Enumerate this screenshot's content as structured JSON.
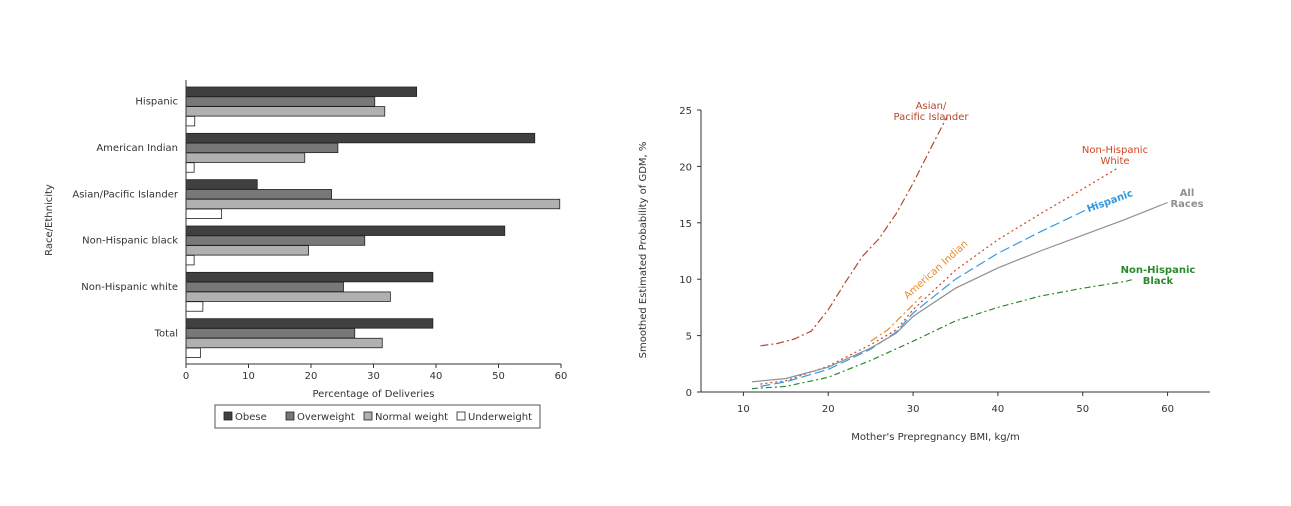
{
  "chart_data": [
    {
      "type": "bar",
      "orientation": "horizontal",
      "ylabel": "Race/Ethnicity",
      "xlabel": "Percentage of Deliveries",
      "xlim": [
        0,
        60
      ],
      "xticks": [
        "0",
        "10",
        "20",
        "30",
        "40",
        "50",
        "60"
      ],
      "categories": [
        "Hispanic",
        "American Indian",
        "Asian/Pacific Islander",
        "Non-Hispanic black",
        "Non-Hispanic white",
        "Total"
      ],
      "series": [
        {
          "name": "Obese",
          "color": "#404040",
          "values": [
            36.9,
            55.8,
            11.4,
            51.0,
            39.5,
            39.5
          ]
        },
        {
          "name": "Overweight",
          "color": "#787878",
          "values": [
            30.2,
            24.3,
            23.3,
            28.6,
            25.2,
            27.0
          ]
        },
        {
          "name": "Normal weight",
          "color": "#b0b0b0",
          "values": [
            31.8,
            19.0,
            59.8,
            19.6,
            32.7,
            31.4
          ]
        },
        {
          "name": "Underweight",
          "color": "#ffffff",
          "values": [
            1.4,
            1.3,
            5.7,
            1.3,
            2.7,
            2.3
          ]
        }
      ],
      "legend": "bottom"
    },
    {
      "type": "line",
      "xlabel": "Mother's Prepregnancy BMI, kg/m",
      "xlabel_superscript": "2",
      "ylabel": "Smoothed Estimated Probability of GDM, %",
      "xlim": [
        5,
        65
      ],
      "ylim": [
        0,
        25
      ],
      "xticks": [
        "10",
        "20",
        "30",
        "40",
        "50",
        "60"
      ],
      "yticks": [
        "0",
        "5",
        "10",
        "15",
        "20",
        "25"
      ],
      "legend": "inline labels",
      "series": [
        {
          "name_lines": [
            "Asian/",
            "Pacific Islander"
          ],
          "color": "#b5462a",
          "dash": "8,3,2,3",
          "x": [
            12,
            14,
            16,
            18,
            20,
            22,
            24,
            26,
            28,
            30,
            32,
            34
          ],
          "y": [
            4.1,
            4.3,
            4.7,
            5.4,
            7.3,
            9.7,
            12.0,
            13.6,
            15.8,
            18.5,
            21.5,
            24.4
          ]
        },
        {
          "name_lines": [
            "Non-Hispanic",
            "White"
          ],
          "color": "#d2441e",
          "dash": "2,3",
          "x": [
            12,
            15,
            20,
            25,
            28,
            30,
            35,
            40,
            45,
            50,
            54
          ],
          "y": [
            0.7,
            1.0,
            2.3,
            4.2,
            5.5,
            7.3,
            10.8,
            13.5,
            15.8,
            18.0,
            19.8
          ]
        },
        {
          "name_lines": [
            "Hispanic"
          ],
          "color": "#3399dd",
          "dash": "10,4",
          "x": [
            12,
            15,
            20,
            25,
            28,
            30,
            35,
            40,
            45,
            50,
            52
          ],
          "y": [
            0.5,
            0.9,
            2.0,
            3.8,
            5.3,
            7.0,
            10.0,
            12.3,
            14.2,
            16.0,
            16.8
          ]
        },
        {
          "name_lines": [
            "All",
            "Races"
          ],
          "color": "#909090",
          "dash": "",
          "x": [
            11,
            15,
            20,
            25,
            28,
            30,
            35,
            40,
            45,
            50,
            55,
            60
          ],
          "y": [
            0.9,
            1.2,
            2.2,
            3.9,
            5.2,
            6.7,
            9.2,
            11.0,
            12.5,
            13.9,
            15.3,
            16.8
          ]
        },
        {
          "name_lines": [
            "Non-Hispanic",
            "Black"
          ],
          "color": "#2a8a2a",
          "dash": "6,3,2,3",
          "x": [
            11,
            15,
            20,
            25,
            30,
            35,
            40,
            45,
            50,
            55,
            56
          ],
          "y": [
            0.3,
            0.5,
            1.3,
            2.8,
            4.5,
            6.3,
            7.5,
            8.5,
            9.2,
            9.8,
            10.0
          ]
        },
        {
          "name_lines": [
            "American Indian"
          ],
          "color": "#e8892a",
          "dash": "8,3,2,3",
          "x": [
            25,
            27,
            29,
            31
          ],
          "y": [
            4.5,
            5.5,
            7.0,
            8.5
          ]
        }
      ]
    }
  ]
}
